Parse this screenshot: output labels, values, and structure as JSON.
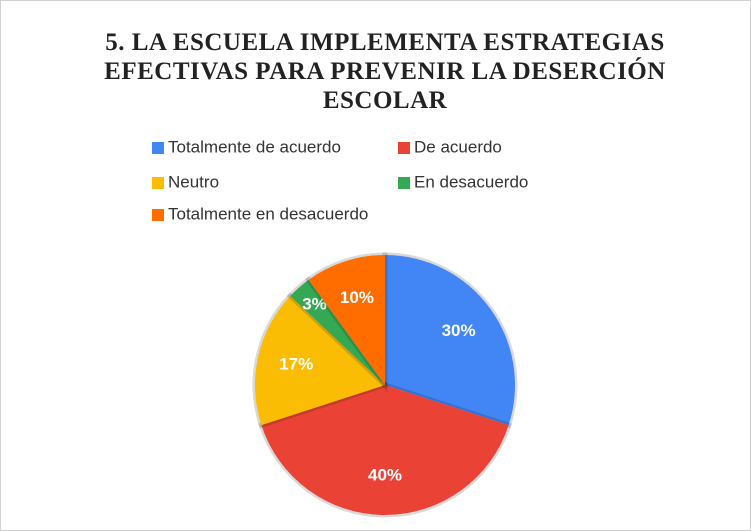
{
  "chart_data": {
    "type": "pie",
    "title": "5. LA ESCUELA IMPLEMENTA ESTRATEGIAS EFECTIVAS PARA PREVENIR LA DESERCIÓN ESCOLAR",
    "categories": [
      "Totalmente de acuerdo",
      "De acuerdo",
      "Neutro",
      "En desacuerdo",
      "Totalmente en desacuerdo"
    ],
    "values": [
      30,
      40,
      17,
      3,
      10
    ],
    "value_labels": [
      "30%",
      "40%",
      "17%",
      "3%",
      "10%"
    ],
    "colors": [
      "#4285f4",
      "#ea4335",
      "#fbbc04",
      "#34a853",
      "#ff6d01"
    ],
    "legend": "top"
  }
}
